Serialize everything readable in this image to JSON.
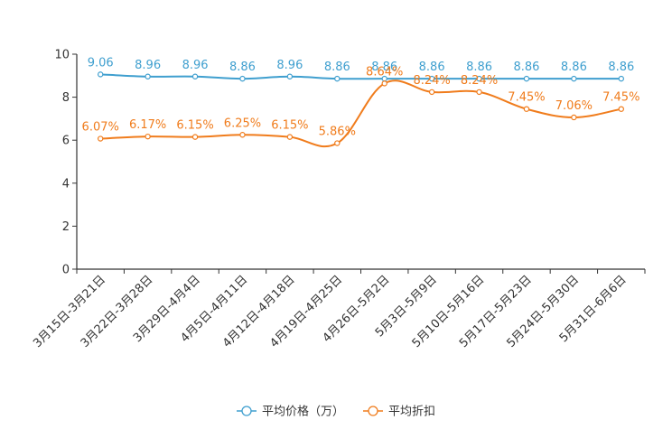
{
  "chart_data": {
    "type": "line",
    "title": "",
    "xlabel": "",
    "ylabel": "",
    "ylim": [
      0,
      10
    ],
    "yticks": [
      0,
      2,
      4,
      6,
      8,
      10
    ],
    "ytick_labels": [
      "0",
      "2",
      "4",
      "6",
      "8",
      "10"
    ],
    "grid": false,
    "legend_position": "bottom-center",
    "categories": [
      "3月15日-3月21日",
      "3月22日-3月28日",
      "3月29日-4月4日",
      "4月5日-4月11日",
      "4月12日-4月18日",
      "4月19日-4月25日",
      "4月26日-5月2日",
      "5月3日-5月9日",
      "5月10日-5月16日",
      "5月17日-5月23日",
      "5月24日-5月30日",
      "5月31日-6月6日"
    ],
    "series": [
      {
        "name": "平均价格（万）",
        "color": "#3f9fcf",
        "values": [
          9.06,
          8.96,
          8.96,
          8.86,
          8.96,
          8.86,
          8.86,
          8.86,
          8.86,
          8.86,
          8.86,
          8.86
        ],
        "labels": [
          "9.06",
          "8.96",
          "8.96",
          "8.86",
          "8.96",
          "8.86",
          "8.86",
          "8.86",
          "8.86",
          "8.86",
          "8.86",
          "8.86"
        ]
      },
      {
        "name": "平均折扣",
        "color": "#f07c1c",
        "values": [
          6.07,
          6.17,
          6.15,
          6.25,
          6.15,
          5.86,
          8.64,
          8.24,
          8.24,
          7.45,
          7.06,
          7.45
        ],
        "labels": [
          "6.07%",
          "6.17%",
          "6.15%",
          "6.25%",
          "6.15%",
          "5.86%",
          "8.64%",
          "8.24%",
          "8.24%",
          "7.45%",
          "7.06%",
          "7.45%"
        ]
      }
    ]
  }
}
